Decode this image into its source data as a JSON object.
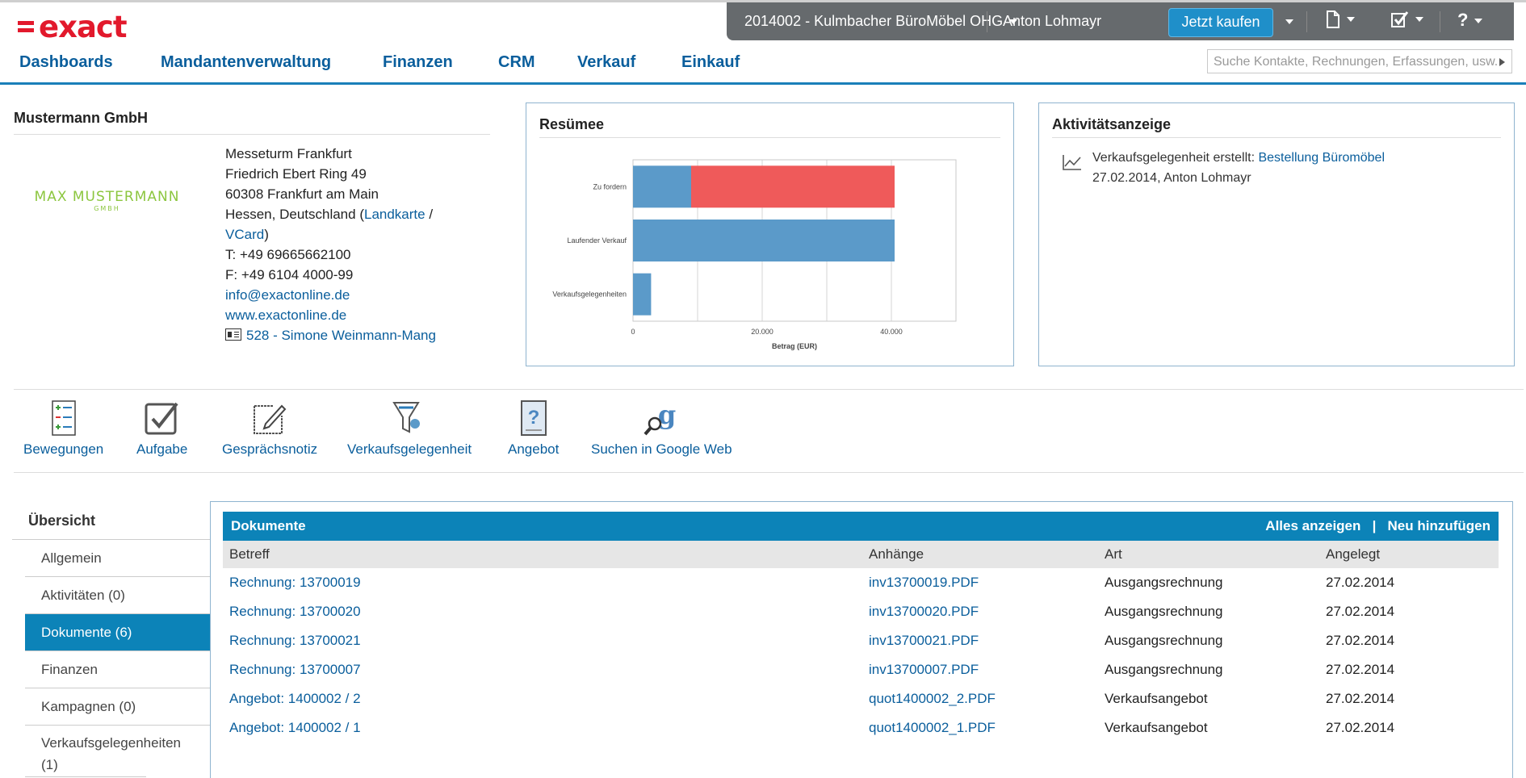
{
  "brand": {
    "logo_text": "exact"
  },
  "topbar": {
    "company": "2014002 - Kulmbacher BüroMöbel OHG",
    "user": "Anton Lohmayr",
    "buy_label": "Jetzt kaufen",
    "help_glyph": "?"
  },
  "nav": {
    "tabs": [
      "Dashboards",
      "Mandantenverwaltung",
      "Finanzen",
      "CRM",
      "Verkauf",
      "Einkauf"
    ],
    "search_placeholder": "Suche Kontakte, Rechnungen, Erfassungen, usw."
  },
  "company": {
    "name": "Mustermann GmbH",
    "logo_line1": "MAX MUSTERMANN",
    "logo_line2": "GMBH",
    "address_lines": [
      "Messeturm Frankfurt",
      "Friedrich Ebert Ring 49",
      "60308 Frankfurt am Main"
    ],
    "region": "Hessen, Deutschland (",
    "map_link": "Landkarte",
    "slash": " /",
    "vcard_link": "VCard",
    "close_paren": ")",
    "phone": "T: +49 69665662100",
    "fax": "F: +49 6104 4000-99",
    "email": "info@exactonline.de",
    "web": "www.exactonline.de",
    "contact": "528 - Simone Weinmann-Mang"
  },
  "summary": {
    "title": "Resümee",
    "chart_data": {
      "type": "bar",
      "orientation": "horizontal",
      "stacked": true,
      "categories": [
        "Zu fordern",
        "Laufender Verkauf",
        "Verkaufsgelegenheiten"
      ],
      "series": [
        {
          "values": [
            9000,
            40500,
            2800
          ],
          "color": "#5b9ac9"
        },
        {
          "values": [
            31500,
            0,
            0
          ],
          "color": "#ef5a5a"
        }
      ],
      "xlabel": "Betrag (EUR)",
      "xlim": [
        0,
        50000
      ],
      "ticks": [
        0,
        20000,
        40000
      ],
      "tick_labels": [
        "0",
        "20.000",
        "40.000"
      ],
      "grid": true
    }
  },
  "activity": {
    "title": "Aktivitätsanzeige",
    "prefix": "Verkaufsgelegenheit erstellt: ",
    "link": "Bestellung Büromöbel",
    "meta": "27.02.2014, Anton Lohmayr"
  },
  "actions": [
    "Bewegungen",
    "Aufgabe",
    "Gesprächsnotiz",
    "Verkaufsgelegenheit",
    "Angebot",
    "Suchen in Google Web"
  ],
  "sidebar": {
    "title": "Übersicht",
    "items": [
      "Allgemein",
      "Aktivitäten (0)",
      "Dokumente (6)",
      "Finanzen",
      "Kampagnen (0)",
      "Verkaufsgelegenheiten (1)"
    ]
  },
  "documents": {
    "title": "Dokumente",
    "show_all": "Alles anzeigen",
    "divider": "|",
    "add_new": "Neu hinzufügen",
    "columns": [
      "Betreff",
      "Anhänge",
      "Art",
      "Angelegt"
    ],
    "rows": [
      {
        "subject": "Rechnung: 13700019",
        "attachment": "inv13700019.PDF",
        "type": "Ausgangsrechnung",
        "created": "27.02.2014"
      },
      {
        "subject": "Rechnung: 13700020",
        "attachment": "inv13700020.PDF",
        "type": "Ausgangsrechnung",
        "created": "27.02.2014"
      },
      {
        "subject": "Rechnung: 13700021",
        "attachment": "inv13700021.PDF",
        "type": "Ausgangsrechnung",
        "created": "27.02.2014"
      },
      {
        "subject": "Rechnung: 13700007",
        "attachment": "inv13700007.PDF",
        "type": "Ausgangsrechnung",
        "created": "27.02.2014"
      },
      {
        "subject": "Angebot: 1400002 / 2",
        "attachment": "quot1400002_2.PDF",
        "type": "Verkaufsangebot",
        "created": "27.02.2014"
      },
      {
        "subject": "Angebot: 1400002 / 1",
        "attachment": "quot1400002_1.PDF",
        "type": "Verkaufsangebot",
        "created": "27.02.2014"
      }
    ]
  },
  "colors": {
    "brand_red": "#e2192c",
    "link_blue": "#0a5e9c",
    "header_blue": "#0c83b8",
    "topbar_gray": "#666a6d",
    "buy_blue": "#1f8fc9"
  }
}
